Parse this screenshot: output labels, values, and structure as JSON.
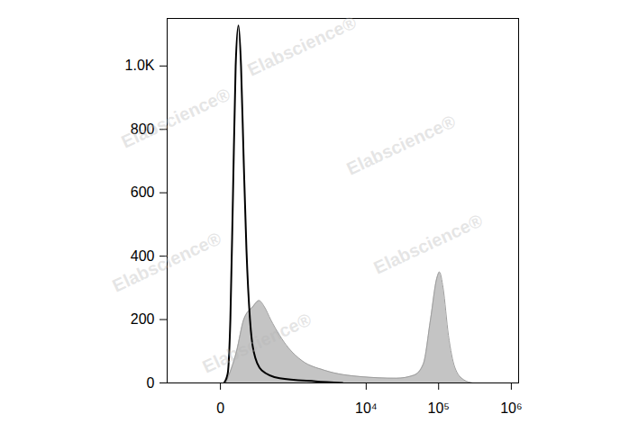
{
  "chart_data": {
    "type": "histogram",
    "annotations": [
      "Elabscience®"
    ],
    "log": "x",
    "xlim": [
      -440,
      1260000
    ],
    "xticks": [
      0,
      {
        "value": 10000,
        "label": "10⁴"
      },
      {
        "value": 100000,
        "label": "10⁵"
      },
      {
        "value": 1000000,
        "label": "10⁶"
      }
    ],
    "ylim": [
      0,
      1150
    ],
    "yticks": [
      0,
      200,
      400,
      600,
      800,
      {
        "value": 1000,
        "label": "1.0K"
      }
    ],
    "grid": false,
    "series": [
      {
        "type": "area",
        "color": "#c4c4c4",
        "x": [
          18.6,
          66.8,
          109,
          178,
          240,
          303,
          391,
          553,
          767,
          1228,
          2604,
          8334,
          26200,
          46350,
          61600,
          77300,
          94300,
          102700,
          115200,
          136600,
          166600,
          221700,
          294300
        ],
        "values": [
          0,
          100,
          200,
          240,
          260,
          240,
          200,
          150,
          110,
          70,
          40,
          20,
          15,
          25,
          60,
          200,
          330,
          350,
          300,
          150,
          50,
          10,
          0
        ]
      },
      {
        "type": "line",
        "color": "#000000",
        "x": [
          12,
          26,
          37,
          49,
          62,
          77,
          92,
          109,
          128,
          155,
          186,
          270,
          553,
          1936,
          4675
        ],
        "values": [
          0,
          30,
          200,
          600,
          1000,
          1128,
          1000,
          700,
          420,
          200,
          100,
          40,
          15,
          5,
          0
        ]
      }
    ]
  }
}
